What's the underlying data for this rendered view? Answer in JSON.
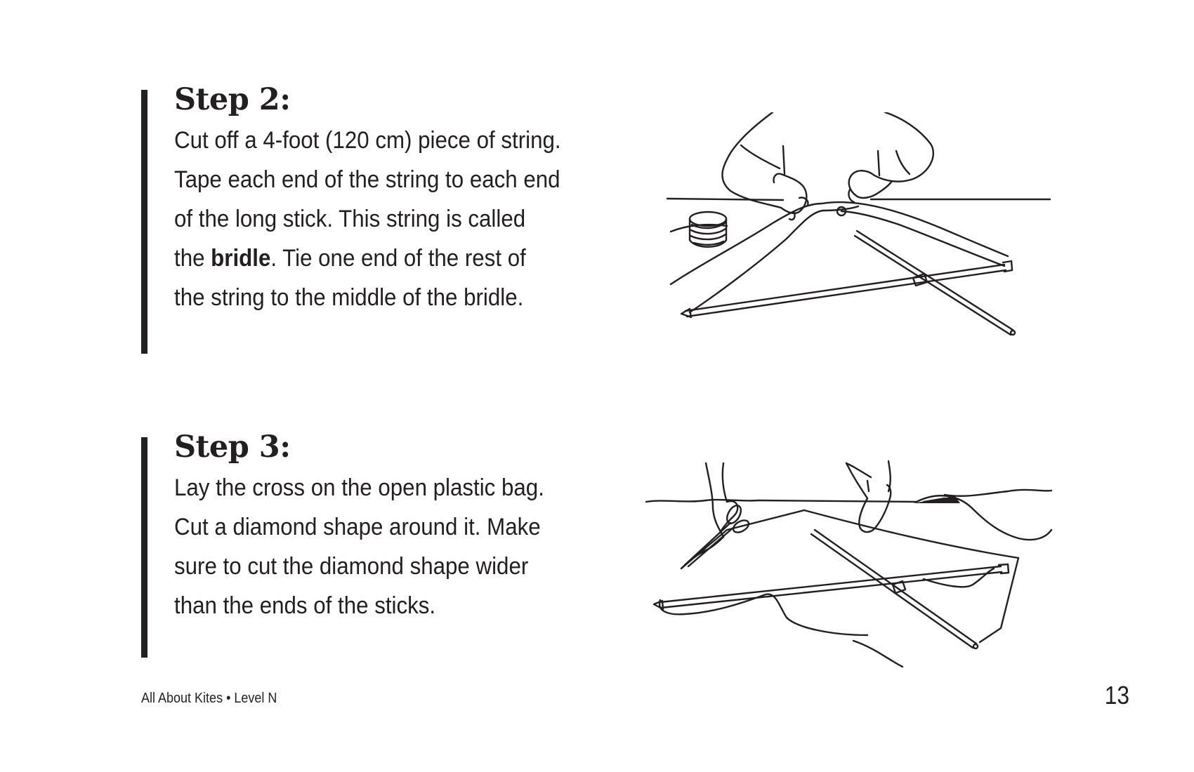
{
  "steps": [
    {
      "heading": "Step 2:",
      "body_before": "Cut off a 4-foot (120 cm) piece of string. Tape each end of the string to each end of the long stick. This string is called the ",
      "body_bold": "bridle",
      "body_after": ". Tie one end of the rest of the string to the middle of the bridle."
    },
    {
      "heading": "Step 3:",
      "body": "Lay the cross on the open plastic bag. Cut a diamond shape around it. Make sure to cut the diamond shape wider than the ends of the sticks."
    }
  ],
  "illustrations": [
    {
      "icon": "hands-tying-bridle-illustration"
    },
    {
      "icon": "hands-cutting-plastic-illustration"
    }
  ],
  "footer": {
    "book_title": "All About Kites • Level N",
    "page_number": "13"
  },
  "colors": {
    "text": "#231f20",
    "rule": "#231f20",
    "background": "#ffffff"
  }
}
